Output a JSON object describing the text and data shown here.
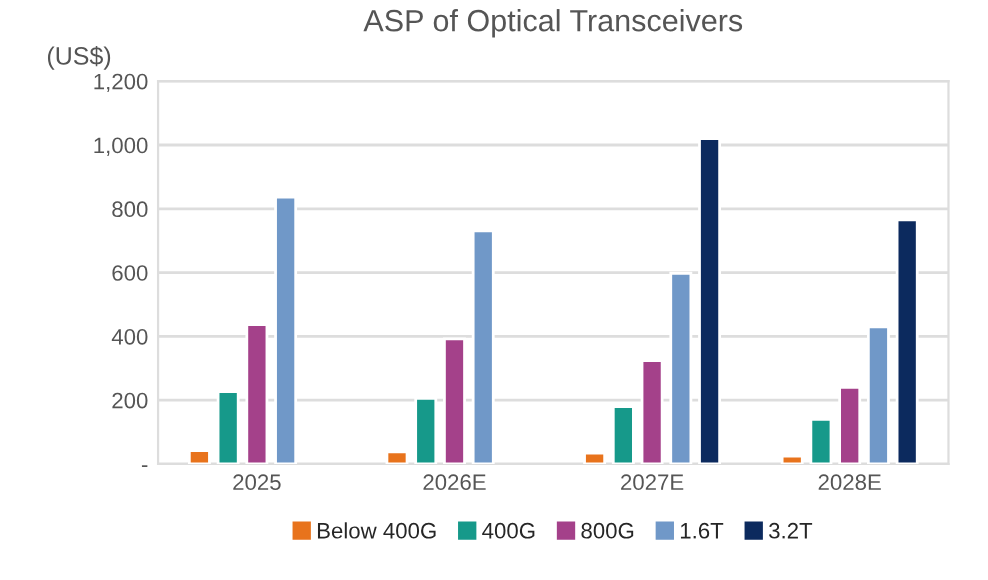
{
  "chart_data": {
    "type": "bar",
    "title": "ASP of Optical Transceivers",
    "ylabel": "(US$)",
    "categories": [
      "2025",
      "2026E",
      "2027E",
      "2028E"
    ],
    "series": [
      {
        "name": "Below 400G",
        "color": "#e8731c",
        "values": [
          42,
          38,
          34,
          25
        ]
      },
      {
        "name": "400G",
        "color": "#16998a",
        "values": [
          227,
          206,
          180,
          140
        ]
      },
      {
        "name": "800G",
        "color": "#a4418a",
        "values": [
          437,
          392,
          324,
          240
        ]
      },
      {
        "name": "1.6T",
        "color": "#7098c8",
        "values": [
          837,
          731,
          598,
          430
        ]
      },
      {
        "name": "3.2T",
        "color": "#0c2a5e",
        "values": [
          null,
          null,
          1020,
          765
        ]
      }
    ],
    "ylim": [
      0,
      1200
    ],
    "yticks": [
      {
        "value": 0,
        "label": "-"
      },
      {
        "value": 200,
        "label": "200"
      },
      {
        "value": 400,
        "label": "400"
      },
      {
        "value": 600,
        "label": "600"
      },
      {
        "value": 800,
        "label": "800"
      },
      {
        "value": 1000,
        "label": "1,000"
      },
      {
        "value": 1200,
        "label": "1,200"
      }
    ],
    "grid": "y",
    "legend": "bottom"
  }
}
